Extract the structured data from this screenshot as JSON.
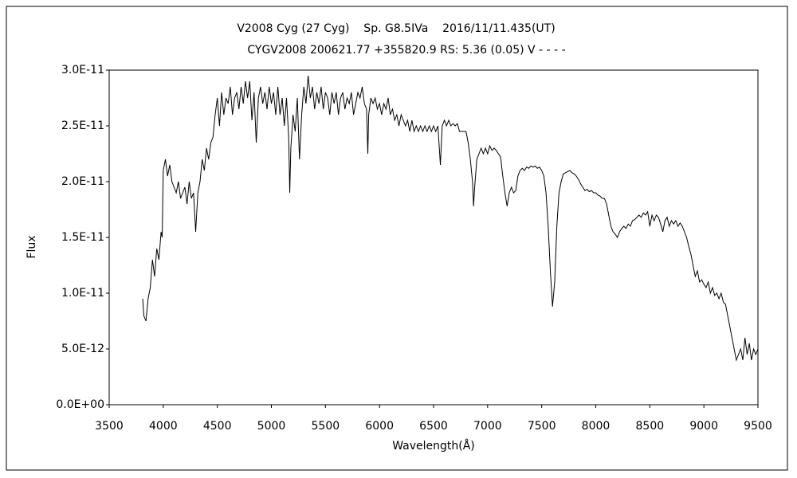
{
  "chart_data": {
    "type": "line",
    "title": "V2008 Cyg (27 Cyg)    Sp. G8.5IVa    2016/11/11.435(UT)",
    "subtitle": "CYGV2008 200621.77 +355820.9 RS: 5.36 (0.05) V - - - -",
    "xlabel": "Wavelength(Å)",
    "ylabel": "Flux",
    "color": "#000000",
    "grid": false,
    "xlim": [
      3500,
      9500
    ],
    "xticks": [
      3500,
      4000,
      4500,
      5000,
      5500,
      6000,
      6500,
      7000,
      7500,
      8000,
      8500,
      9000,
      9500
    ],
    "ylim": [
      0,
      3e-11
    ],
    "yticks": [
      {
        "value": 0,
        "label": "0.0E+00"
      },
      {
        "value": 5e-12,
        "label": "5.0E-12"
      },
      {
        "value": 1e-11,
        "label": "1.0E-11"
      },
      {
        "value": 1.5e-11,
        "label": "1.5E-11"
      },
      {
        "value": 2e-11,
        "label": "2.0E-11"
      },
      {
        "value": 2.5e-11,
        "label": "2.5E-11"
      },
      {
        "value": 3e-11,
        "label": "3.0E-11"
      }
    ],
    "x": [
      3810,
      3820,
      3840,
      3860,
      3880,
      3900,
      3920,
      3940,
      3960,
      3980,
      3990,
      4000,
      4020,
      4040,
      4060,
      4080,
      4100,
      4120,
      4140,
      4160,
      4180,
      4200,
      4220,
      4240,
      4260,
      4280,
      4300,
      4320,
      4340,
      4360,
      4380,
      4400,
      4420,
      4440,
      4460,
      4480,
      4500,
      4520,
      4540,
      4560,
      4580,
      4600,
      4620,
      4640,
      4660,
      4680,
      4700,
      4720,
      4740,
      4760,
      4780,
      4800,
      4820,
      4840,
      4860,
      4880,
      4900,
      4920,
      4940,
      4960,
      4980,
      5000,
      5020,
      5040,
      5060,
      5080,
      5100,
      5120,
      5140,
      5160,
      5170,
      5180,
      5200,
      5220,
      5240,
      5260,
      5280,
      5300,
      5320,
      5340,
      5360,
      5380,
      5400,
      5420,
      5440,
      5460,
      5480,
      5500,
      5520,
      5540,
      5560,
      5580,
      5600,
      5620,
      5640,
      5660,
      5680,
      5700,
      5720,
      5740,
      5760,
      5780,
      5800,
      5820,
      5840,
      5860,
      5880,
      5892,
      5900,
      5920,
      5940,
      5960,
      5980,
      6000,
      6020,
      6040,
      6060,
      6080,
      6100,
      6120,
      6140,
      6160,
      6180,
      6200,
      6220,
      6240,
      6260,
      6280,
      6300,
      6320,
      6340,
      6360,
      6380,
      6400,
      6420,
      6440,
      6460,
      6480,
      6500,
      6520,
      6540,
      6563,
      6580,
      6600,
      6620,
      6640,
      6660,
      6680,
      6700,
      6720,
      6740,
      6760,
      6780,
      6800,
      6820,
      6840,
      6860,
      6870,
      6880,
      6900,
      6920,
      6940,
      6960,
      6980,
      7000,
      7020,
      7040,
      7060,
      7080,
      7100,
      7120,
      7140,
      7160,
      7180,
      7200,
      7220,
      7240,
      7260,
      7280,
      7300,
      7320,
      7340,
      7360,
      7380,
      7400,
      7420,
      7440,
      7460,
      7480,
      7500,
      7520,
      7540,
      7560,
      7580,
      7600,
      7620,
      7640,
      7660,
      7680,
      7700,
      7720,
      7740,
      7760,
      7780,
      7800,
      7820,
      7840,
      7860,
      7880,
      7900,
      7920,
      7940,
      7960,
      7980,
      8000,
      8020,
      8040,
      8060,
      8080,
      8100,
      8120,
      8140,
      8160,
      8180,
      8200,
      8220,
      8240,
      8260,
      8280,
      8300,
      8320,
      8340,
      8360,
      8380,
      8400,
      8420,
      8440,
      8460,
      8480,
      8500,
      8520,
      8540,
      8560,
      8580,
      8600,
      8620,
      8640,
      8660,
      8680,
      8700,
      8720,
      8740,
      8760,
      8780,
      8800,
      8820,
      8840,
      8860,
      8880,
      8900,
      8920,
      8940,
      8960,
      8980,
      9000,
      9020,
      9040,
      9060,
      9080,
      9100,
      9120,
      9140,
      9160,
      9180,
      9200,
      9220,
      9240,
      9260,
      9280,
      9300,
      9320,
      9340,
      9360,
      9380,
      9400,
      9420,
      9440,
      9460,
      9480,
      9500
    ],
    "values": [
      9.5e-12,
      8e-12,
      7.5e-12,
      9.5e-12,
      1.05e-11,
      1.3e-11,
      1.15e-11,
      1.4e-11,
      1.3e-11,
      1.55e-11,
      1.5e-11,
      2.1e-11,
      2.2e-11,
      2.05e-11,
      2.15e-11,
      2e-11,
      1.95e-11,
      1.9e-11,
      2e-11,
      1.85e-11,
      1.9e-11,
      1.95e-11,
      1.8e-11,
      2e-11,
      1.85e-11,
      1.9e-11,
      1.55e-11,
      1.9e-11,
      2e-11,
      2.2e-11,
      2.1e-11,
      2.3e-11,
      2.2e-11,
      2.35e-11,
      2.4e-11,
      2.6e-11,
      2.75e-11,
      2.5e-11,
      2.8e-11,
      2.6e-11,
      2.75e-11,
      2.7e-11,
      2.85e-11,
      2.6e-11,
      2.75e-11,
      2.8e-11,
      2.65e-11,
      2.85e-11,
      2.7e-11,
      2.9e-11,
      2.75e-11,
      2.9e-11,
      2.55e-11,
      2.8e-11,
      2.35e-11,
      2.75e-11,
      2.85e-11,
      2.7e-11,
      2.8e-11,
      2.65e-11,
      2.85e-11,
      2.7e-11,
      2.8e-11,
      2.6e-11,
      2.85e-11,
      2.6e-11,
      2.75e-11,
      2.5e-11,
      2.75e-11,
      2.4e-11,
      1.9e-11,
      2.3e-11,
      2.6e-11,
      2.45e-11,
      2.75e-11,
      2.2e-11,
      2.6e-11,
      2.85e-11,
      2.7e-11,
      2.95e-11,
      2.75e-11,
      2.85e-11,
      2.65e-11,
      2.8e-11,
      2.7e-11,
      2.85e-11,
      2.65e-11,
      2.8e-11,
      2.75e-11,
      2.6e-11,
      2.8e-11,
      2.7e-11,
      2.8e-11,
      2.6e-11,
      2.75e-11,
      2.8e-11,
      2.65e-11,
      2.75e-11,
      2.7e-11,
      2.8e-11,
      2.6e-11,
      2.7e-11,
      2.8e-11,
      2.75e-11,
      2.85e-11,
      2.7e-11,
      2.65e-11,
      2.25e-11,
      2.6e-11,
      2.75e-11,
      2.7e-11,
      2.75e-11,
      2.65e-11,
      2.7e-11,
      2.6e-11,
      2.7e-11,
      2.65e-11,
      2.75e-11,
      2.6e-11,
      2.65e-11,
      2.55e-11,
      2.6e-11,
      2.5e-11,
      2.6e-11,
      2.55e-11,
      2.5e-11,
      2.55e-11,
      2.45e-11,
      2.55e-11,
      2.45e-11,
      2.5e-11,
      2.45e-11,
      2.5e-11,
      2.45e-11,
      2.5e-11,
      2.45e-11,
      2.5e-11,
      2.45e-11,
      2.5e-11,
      2.45e-11,
      2.5e-11,
      2.15e-11,
      2.5e-11,
      2.55e-11,
      2.5e-11,
      2.55e-11,
      2.5e-11,
      2.52e-11,
      2.5e-11,
      2.52e-11,
      2.45e-11,
      2.45e-11,
      2.45e-11,
      2.45e-11,
      2.35e-11,
      2.2e-11,
      2e-11,
      1.78e-11,
      1.95e-11,
      2.2e-11,
      2.25e-11,
      2.3e-11,
      2.25e-11,
      2.3e-11,
      2.25e-11,
      2.32e-11,
      2.28e-11,
      2.3e-11,
      2.28e-11,
      2.25e-11,
      2.22e-11,
      2.05e-11,
      1.9e-11,
      1.78e-11,
      1.9e-11,
      1.95e-11,
      1.9e-11,
      1.92e-11,
      2.05e-11,
      2.1e-11,
      2.12e-11,
      2.1e-11,
      2.13e-11,
      2.12e-11,
      2.14e-11,
      2.13e-11,
      2.14e-11,
      2.12e-11,
      2.13e-11,
      2.1e-11,
      2.05e-11,
      1.9e-11,
      1.6e-11,
      1.2e-11,
      8.8e-12,
      1.1e-11,
      1.6e-11,
      1.9e-11,
      2e-11,
      2.07e-11,
      2.08e-11,
      2.09e-11,
      2.1e-11,
      2.08e-11,
      2.07e-11,
      2.05e-11,
      2.02e-11,
      1.98e-11,
      1.95e-11,
      1.92e-11,
      1.93e-11,
      1.91e-11,
      1.92e-11,
      1.9e-11,
      1.9e-11,
      1.88e-11,
      1.87e-11,
      1.85e-11,
      1.85e-11,
      1.8e-11,
      1.7e-11,
      1.6e-11,
      1.55e-11,
      1.53e-11,
      1.5e-11,
      1.55e-11,
      1.58e-11,
      1.6e-11,
      1.58e-11,
      1.62e-11,
      1.6e-11,
      1.65e-11,
      1.66e-11,
      1.68e-11,
      1.7e-11,
      1.68e-11,
      1.72e-11,
      1.7e-11,
      1.73e-11,
      1.6e-11,
      1.7e-11,
      1.65e-11,
      1.7e-11,
      1.68e-11,
      1.62e-11,
      1.55e-11,
      1.65e-11,
      1.68e-11,
      1.6e-11,
      1.65e-11,
      1.62e-11,
      1.65e-11,
      1.6e-11,
      1.63e-11,
      1.6e-11,
      1.55e-11,
      1.5e-11,
      1.42e-11,
      1.35e-11,
      1.25e-11,
      1.15e-11,
      1.2e-11,
      1.1e-11,
      1.12e-11,
      1.08e-11,
      1.05e-11,
      1.1e-11,
      1e-11,
      1.05e-11,
      9.8e-12,
      1e-11,
      9.5e-12,
      1e-11,
      9.2e-12,
      9e-12,
      8e-12,
      7e-12,
      6e-12,
      5e-12,
      4e-12,
      4.5e-12,
      5e-12,
      4e-12,
      6e-12,
      4.5e-12,
      5.5e-12,
      4e-12,
      5e-12,
      4.5e-12,
      5e-12
    ]
  }
}
